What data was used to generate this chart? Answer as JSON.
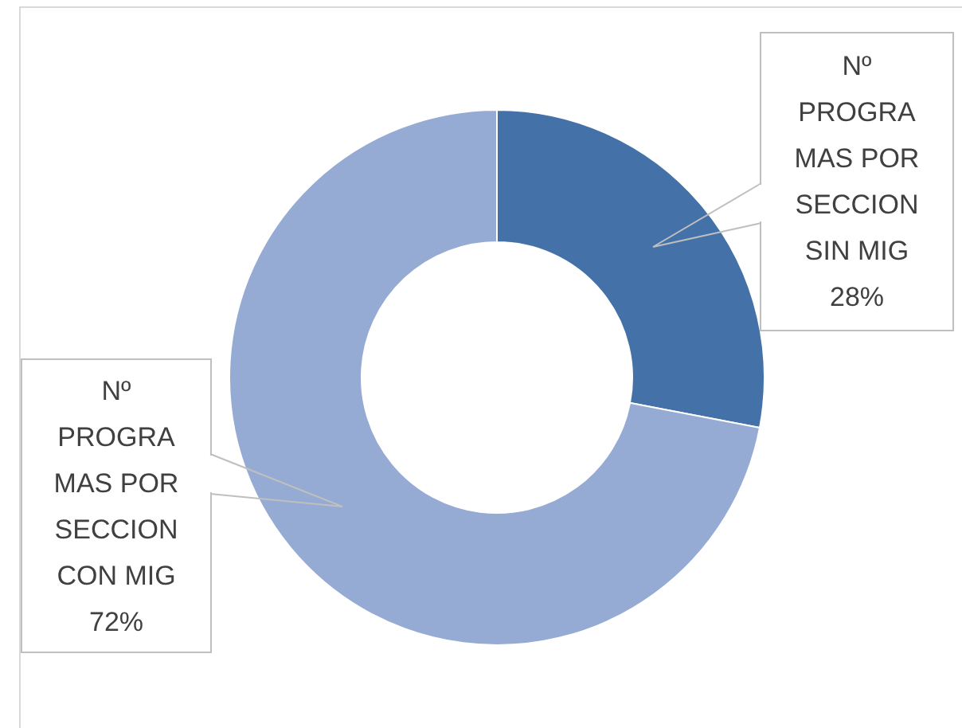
{
  "chart_data": {
    "type": "donut",
    "categories": [
      "Nº PROGRAMAS POR SECCION SIN MIG",
      "Nº PROGRAMAS POR SECCION CON MIG"
    ],
    "values": [
      28,
      72
    ],
    "colors": [
      "#4472a8",
      "#95abd3"
    ],
    "value_labels": [
      "28%",
      "72%"
    ]
  }
}
